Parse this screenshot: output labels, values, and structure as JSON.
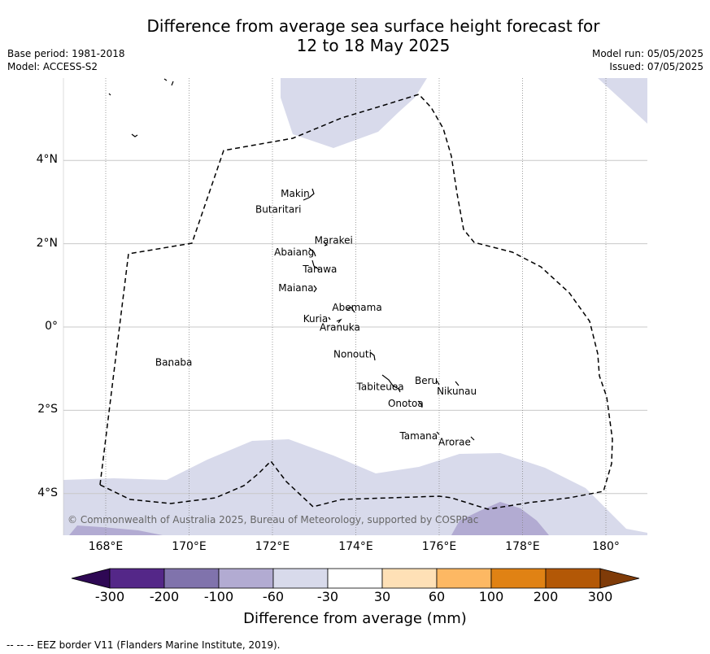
{
  "title_line1": "Difference from average sea surface height forecast for",
  "title_line2": "12 to 18 May 2025",
  "base_period": "Base period: 1981-2018",
  "model": "Model: ACCESS-S2",
  "model_run": "Model run: 05/05/2025",
  "issued": "Issued: 07/05/2025",
  "lat_ticks": [
    "4°N",
    "2°N",
    "0°",
    "2°S",
    "4°S"
  ],
  "lon_ticks": [
    "168°E",
    "170°E",
    "172°E",
    "174°E",
    "176°E",
    "178°E",
    "180°"
  ],
  "places": [
    {
      "name": "Makin",
      "lon": 172.9,
      "lat": 3.2
    },
    {
      "name": "Butaritari",
      "lon": 172.8,
      "lat": 2.9
    },
    {
      "name": "Marakei",
      "lon": 173.3,
      "lat": 2.0
    },
    {
      "name": "Abaiang",
      "lon": 172.9,
      "lat": 1.8
    },
    {
      "name": "Tarawa",
      "lon": 173.0,
      "lat": 1.35
    },
    {
      "name": "Maiana",
      "lon": 173.0,
      "lat": 0.9
    },
    {
      "name": "Abemama",
      "lon": 173.9,
      "lat": 0.35
    },
    {
      "name": "Kuria",
      "lon": 173.4,
      "lat": 0.2
    },
    {
      "name": "Aranuka",
      "lon": 173.6,
      "lat": 0.15
    },
    {
      "name": "Nonouti",
      "lon": 174.4,
      "lat": -0.65
    },
    {
      "name": "Banaba",
      "lon": 169.5,
      "lat": -0.85
    },
    {
      "name": "Tabiteuea",
      "lon": 174.8,
      "lat": -1.4
    },
    {
      "name": "Beru",
      "lon": 176.0,
      "lat": -1.33
    },
    {
      "name": "Nikunau",
      "lon": 176.45,
      "lat": -1.35
    },
    {
      "name": "Onotoa",
      "lon": 175.55,
      "lat": -1.8
    },
    {
      "name": "Tamana",
      "lon": 175.95,
      "lat": -2.5
    },
    {
      "name": "Arorae",
      "lon": 176.8,
      "lat": -2.65
    }
  ],
  "colorbar": {
    "labels": [
      "-300",
      "-200",
      "-100",
      "-60",
      "-30",
      "30",
      "60",
      "100",
      "200",
      "300"
    ],
    "colors": [
      "#2e0854",
      "#542788",
      "#8073ac",
      "#b2abd2",
      "#d8daeb",
      "#ffffff",
      "#fee0b6",
      "#fdb863",
      "#e08214",
      "#b35806",
      "#7f3b08"
    ],
    "title": "Difference from average (mm)"
  },
  "copyright": "© Commonwealth of Australia 2025, Bureau of Meteorology, supported by COSPPac",
  "footer": "--  --  -- EEZ border V11 (Flanders Marine Institute, 2019).",
  "map_extent": {
    "lon": [
      167,
      181
    ],
    "lat": [
      -5,
      6
    ]
  }
}
